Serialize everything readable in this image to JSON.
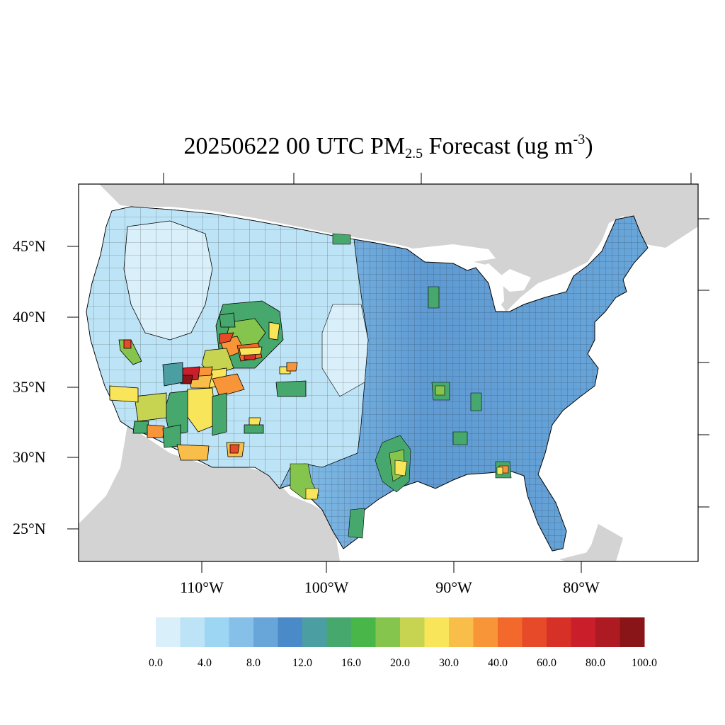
{
  "title": {
    "prefix": "20250622 00 UTC PM",
    "subscript": "2.5",
    "middle": " Forecast (ug m",
    "superscript": "-3",
    "suffix": ")"
  },
  "map": {
    "projection": "lambert-conformal",
    "region": "contiguous-united-states",
    "land_outside_color": "#d3d3d3",
    "water_color": "#ffffff",
    "lat_labels": [
      {
        "lat": 45,
        "text": "45°N"
      },
      {
        "lat": 40,
        "text": "40°N"
      },
      {
        "lat": 35,
        "text": "35°N"
      },
      {
        "lat": 30,
        "text": "30°N"
      },
      {
        "lat": 25,
        "text": "25°N"
      }
    ],
    "lon_labels": [
      {
        "lon": -110,
        "text": "110°W"
      },
      {
        "lon": -100,
        "text": "100°W"
      },
      {
        "lon": -90,
        "text": "90°W"
      },
      {
        "lon": -80,
        "text": "80°W"
      }
    ]
  },
  "colorbar": {
    "colors": [
      "#d9eff9",
      "#bde4f6",
      "#9cd6f2",
      "#86bfe7",
      "#68a6da",
      "#4a8ac8",
      "#4b9ea2",
      "#47a86d",
      "#48b649",
      "#85c54d",
      "#c6d452",
      "#f8e55a",
      "#f8be49",
      "#f79538",
      "#f2692b",
      "#e64a28",
      "#d73027",
      "#ca1f2a",
      "#ad1a21",
      "#8a1518"
    ],
    "labels": [
      "0.0",
      "4.0",
      "8.0",
      "12.0",
      "16.0",
      "20.0",
      "30.0",
      "40.0",
      "60.0",
      "80.0",
      "100.0"
    ]
  }
}
